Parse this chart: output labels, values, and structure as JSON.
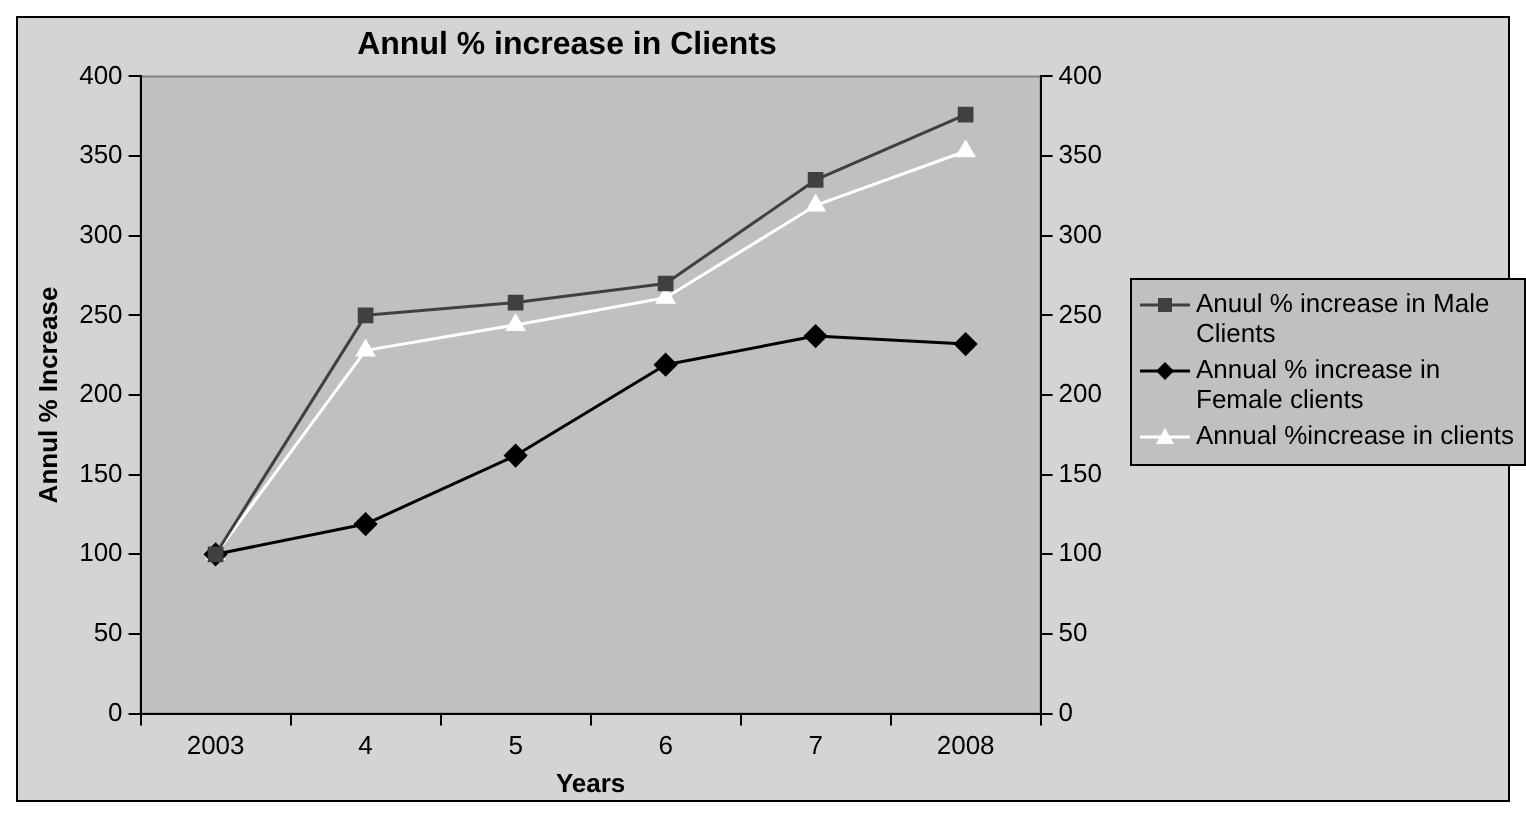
{
  "chart_data": {
    "type": "line",
    "title": "Annul % increase in Clients",
    "xlabel": "Years",
    "ylabel": "Annul % Increase",
    "categories": [
      "2003",
      "4",
      "5",
      "6",
      "7",
      "2008"
    ],
    "series": [
      {
        "name": "Anuul % increase in Male Clients",
        "color": "#404040",
        "marker": "square",
        "values": [
          100,
          250,
          258,
          270,
          335,
          376
        ]
      },
      {
        "name": "Annual % increase in Female clients",
        "color": "#000000",
        "marker": "diamond",
        "values": [
          100,
          119,
          162,
          219,
          237,
          232
        ]
      },
      {
        "name": "Annual %increase in clients",
        "color": "#ffffff",
        "marker": "triangle",
        "values": [
          100,
          228,
          244,
          261,
          319,
          353
        ]
      }
    ],
    "ylim": [
      0,
      400
    ],
    "yticks": [
      0,
      50,
      100,
      150,
      200,
      250,
      300,
      350,
      400
    ],
    "y2lim": [
      0,
      400
    ],
    "y2ticks": [
      0,
      50,
      100,
      150,
      200,
      250,
      300,
      350,
      400
    ],
    "grid": false,
    "legend": "right"
  }
}
